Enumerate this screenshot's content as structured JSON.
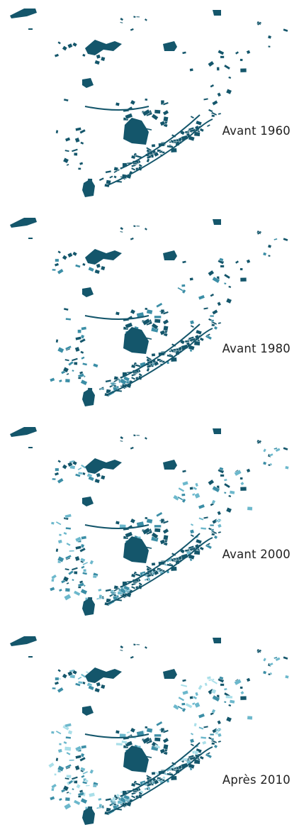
{
  "colors": {
    "before_1960": "#14566b",
    "from_1960_to_1980": "#3b8ea6",
    "from_1980_to_2000": "#6cb8cc",
    "after_2000": "#a9dfe9",
    "background": "#ffffff"
  },
  "panels": [
    {
      "label": "Avant 1960",
      "period_index": 0
    },
    {
      "label": "Avant 1980",
      "period_index": 1
    },
    {
      "label": "Avant 2000",
      "period_index": 2
    },
    {
      "label": "Après 2010",
      "period_index": 3
    }
  ]
}
